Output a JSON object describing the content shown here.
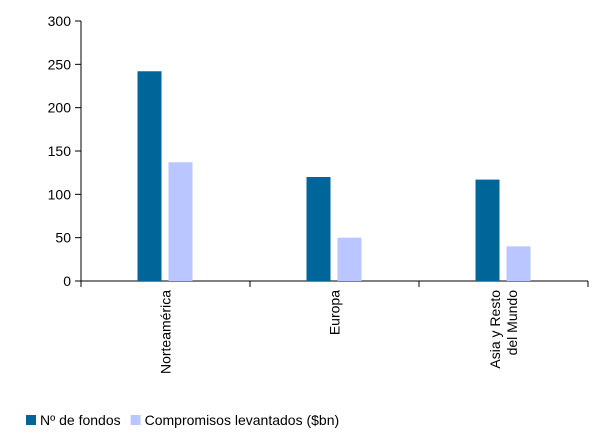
{
  "chart_data": {
    "type": "bar",
    "categories": [
      [
        "Norteamérica"
      ],
      [
        "Europa"
      ],
      [
        "Asia y Resto",
        "del Mundo"
      ]
    ],
    "series": [
      {
        "name": "Nº de fondos",
        "color": "#006699",
        "values": [
          242,
          120,
          117
        ]
      },
      {
        "name": "Compromisos levantados ($bn)",
        "color": "#b9c6ff",
        "values": [
          137,
          50,
          40
        ]
      }
    ],
    "yticks": [
      "0",
      "50",
      "100",
      "150",
      "200",
      "250",
      "300"
    ],
    "ylim": [
      0,
      300
    ],
    "grid": false,
    "legend": "bottom-left"
  }
}
